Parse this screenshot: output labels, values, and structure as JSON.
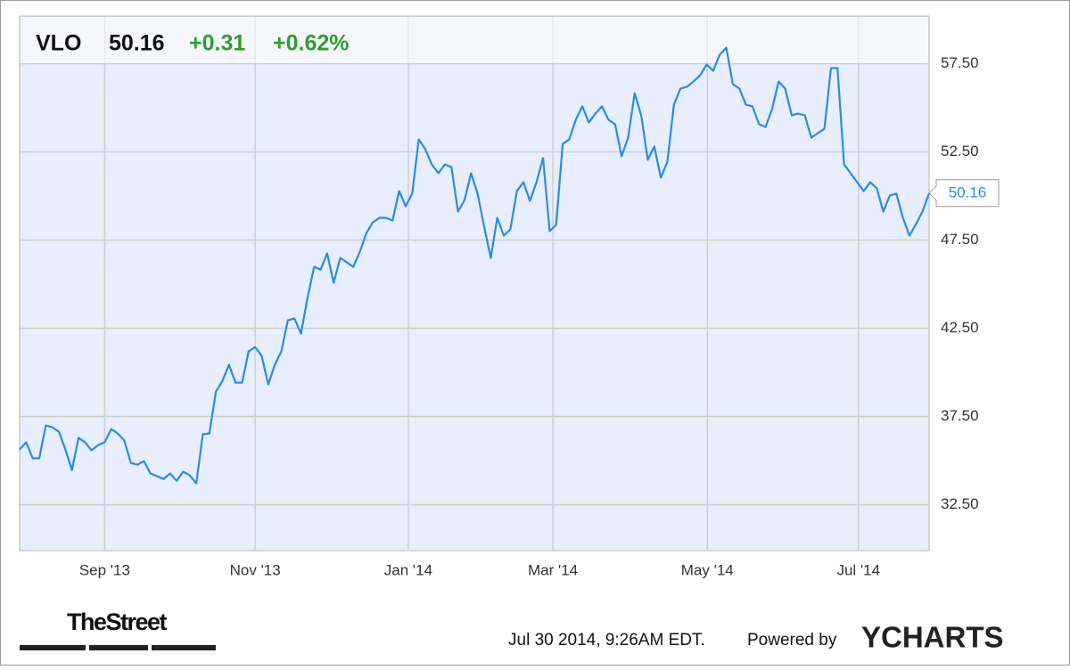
{
  "chart_data": {
    "type": "line",
    "header": {
      "symbol": "VLO",
      "price": "50.16",
      "change": "+0.31",
      "change_percent": "+0.62%"
    },
    "series": [
      {
        "name": "VLO",
        "color": "#2b8be3",
        "values": [
          35.63,
          36.04,
          35.13,
          35.13,
          36.99,
          36.89,
          36.64,
          35.63,
          34.47,
          36.29,
          36.04,
          35.58,
          35.88,
          36.04,
          36.79,
          36.54,
          36.14,
          34.87,
          34.77,
          34.97,
          34.27,
          34.12,
          33.96,
          34.27,
          33.86,
          34.37,
          34.17,
          33.71,
          36.49,
          36.54,
          38.91,
          39.52,
          40.43,
          39.42,
          39.42,
          41.19,
          41.44,
          40.93,
          39.32,
          40.43,
          41.19,
          42.95,
          43.06,
          42.2,
          44.22,
          45.98,
          45.83,
          46.74,
          45.08,
          46.49,
          46.24,
          45.98,
          46.84,
          47.9,
          48.51,
          48.76,
          48.76,
          48.61,
          50.28,
          49.42,
          50.13,
          53.21,
          52.65,
          51.79,
          51.29,
          51.79,
          51.64,
          49.12,
          49.77,
          51.29,
          50.13,
          48.26,
          46.49,
          48.76,
          47.75,
          48.11,
          50.28,
          50.78,
          49.72,
          50.78,
          52.15,
          48.01,
          48.36,
          52.95,
          53.21,
          54.32,
          55.08,
          54.17,
          54.67,
          55.08,
          54.32,
          54.07,
          52.25,
          53.31,
          55.83,
          54.57,
          52.05,
          52.8,
          51.04,
          51.94,
          55.18,
          56.09,
          56.19,
          56.49,
          56.84,
          57.45,
          57.1,
          58.01,
          58.41,
          56.34,
          56.09,
          55.18,
          55.08,
          54.07,
          53.91,
          54.92,
          56.49,
          56.09,
          54.57,
          54.67,
          54.57,
          53.31,
          53.56,
          53.81,
          57.25,
          57.25,
          51.79,
          51.29,
          50.78,
          50.28,
          50.78,
          50.43,
          49.12,
          50.03,
          50.13,
          48.76,
          47.75,
          48.41,
          49.12,
          50.16
        ]
      }
    ],
    "xlim": [
      0,
      139
    ],
    "xticks": [
      {
        "value": 13,
        "label": "Sep '13"
      },
      {
        "value": 36,
        "label": "Nov '13"
      },
      {
        "value": 59.4,
        "label": "Jan '14"
      },
      {
        "value": 81.5,
        "label": "Mar '14"
      },
      {
        "value": 105.1,
        "label": "May '14"
      },
      {
        "value": 128.2,
        "label": "Jul '14"
      }
    ],
    "ylim": [
      29.9,
      60.2
    ],
    "yticks": [
      {
        "value": 32.5,
        "label": "32.50"
      },
      {
        "value": 37.5,
        "label": "37.50"
      },
      {
        "value": 42.5,
        "label": "42.50"
      },
      {
        "value": 47.5,
        "label": "47.50"
      },
      {
        "value": 52.5,
        "label": "52.50"
      },
      {
        "value": 57.5,
        "label": "57.50"
      }
    ],
    "grid": true,
    "footer": {
      "source_logo": "TheStreet",
      "timestamp": "Jul 30 2014, 9:26AM EDT.",
      "powered_by": "Powered by",
      "brand": "YCHARTS"
    }
  }
}
